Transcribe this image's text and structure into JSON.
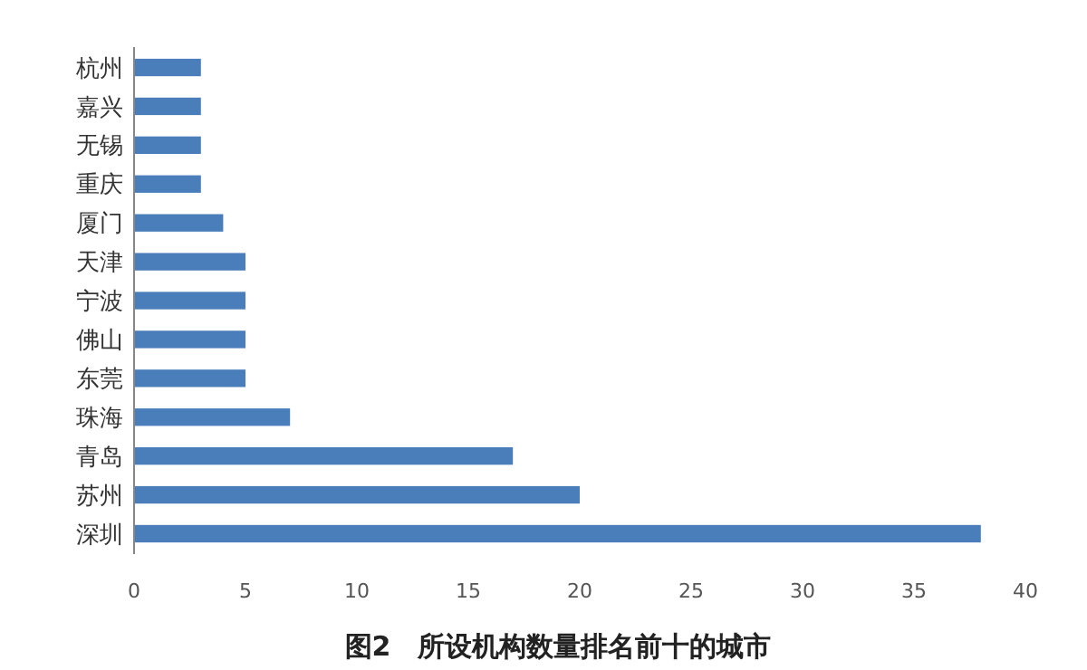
{
  "chart_data": {
    "type": "bar",
    "orientation": "horizontal",
    "title": "图2　所设机构数量排名前十的城市",
    "categories": [
      "杭州",
      "嘉兴",
      "无锡",
      "重庆",
      "厦门",
      "天津",
      "宁波",
      "佛山",
      "东莞",
      "珠海",
      "青岛",
      "苏州",
      "深圳"
    ],
    "values": [
      3,
      3,
      3,
      3,
      4,
      5,
      5,
      5,
      5,
      7,
      17,
      20,
      38
    ],
    "color": "#4a7ebb",
    "xlim": [
      0,
      40
    ],
    "xticks": [
      0,
      5,
      10,
      15,
      20,
      25,
      30,
      35,
      40
    ],
    "grid": false
  }
}
